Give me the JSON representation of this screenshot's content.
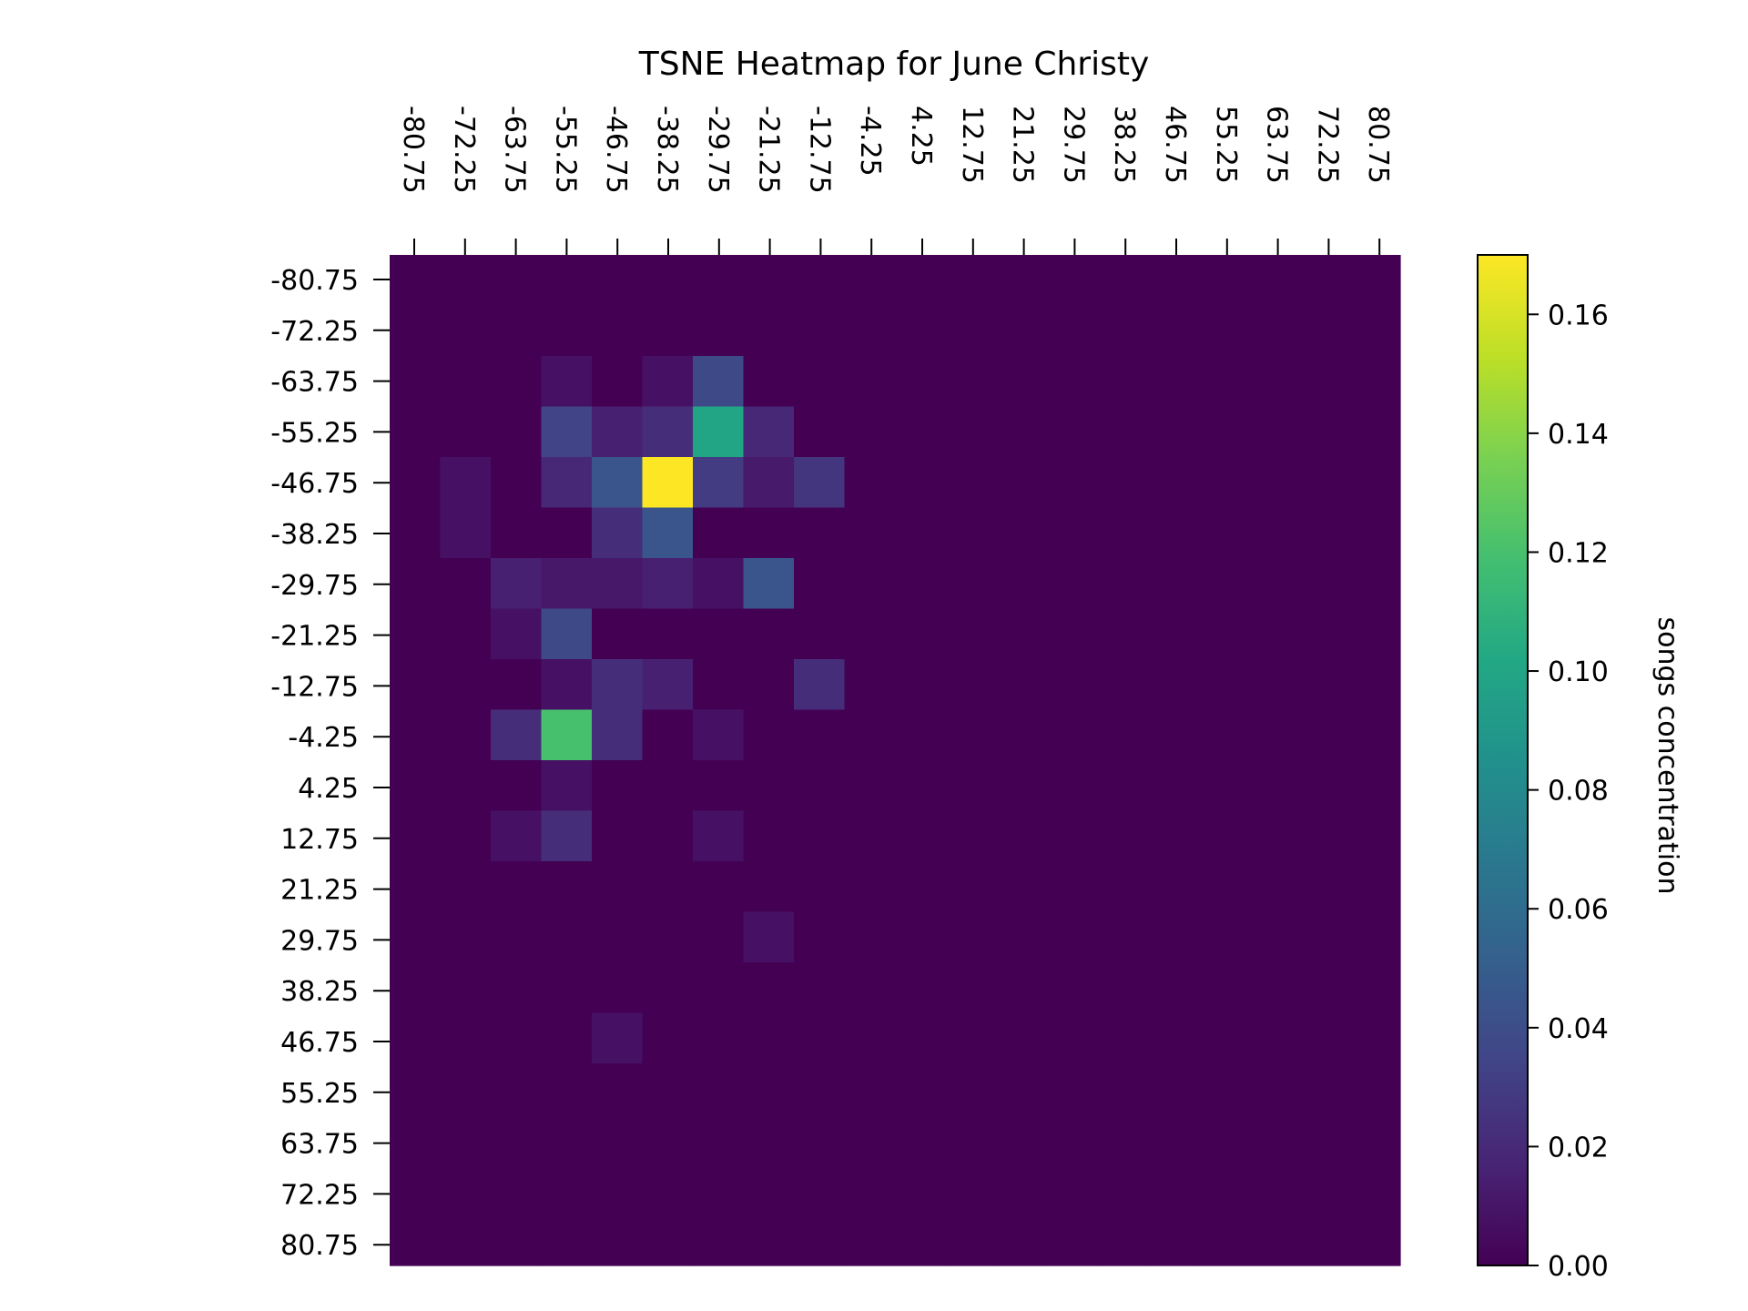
{
  "chart_data": {
    "type": "heatmap",
    "title": "TSNE Heatmap for June Christy",
    "x_ticks": [
      "-80.75",
      "-72.25",
      "-63.75",
      "-55.25",
      "-46.75",
      "-38.25",
      "-29.75",
      "-21.25",
      "-12.75",
      "-4.25",
      "4.25",
      "12.75",
      "21.25",
      "29.75",
      "38.25",
      "46.75",
      "55.25",
      "63.75",
      "72.25",
      "80.75"
    ],
    "y_ticks": [
      "-80.75",
      "-72.25",
      "-63.75",
      "-55.25",
      "-46.75",
      "-38.25",
      "-29.75",
      "-21.25",
      "-12.75",
      "-4.25",
      "4.25",
      "12.75",
      "21.25",
      "29.75",
      "38.25",
      "46.75",
      "55.25",
      "63.75",
      "72.25",
      "80.75"
    ],
    "x_axis_position": "top",
    "colormap": "viridis",
    "colorbar": {
      "label": "songs concentration",
      "range": [
        0,
        0.17
      ],
      "ticks": [
        "0.00",
        "0.02",
        "0.04",
        "0.06",
        "0.08",
        "0.10",
        "0.12",
        "0.14",
        "0.16"
      ],
      "tick_values": [
        0,
        0.02,
        0.04,
        0.06,
        0.08,
        0.1,
        0.12,
        0.14,
        0.16
      ]
    },
    "rows": 20,
    "cols": 20,
    "values": [
      [
        0,
        0,
        0,
        0,
        0,
        0,
        0,
        0,
        0,
        0,
        0,
        0,
        0,
        0,
        0,
        0,
        0,
        0,
        0,
        0
      ],
      [
        0,
        0,
        0,
        0,
        0,
        0,
        0,
        0,
        0,
        0,
        0,
        0,
        0,
        0,
        0,
        0,
        0,
        0,
        0,
        0
      ],
      [
        0,
        0,
        0,
        0.008,
        0,
        0.008,
        0.038,
        0,
        0,
        0,
        0,
        0,
        0,
        0,
        0,
        0,
        0,
        0,
        0,
        0
      ],
      [
        0,
        0,
        0,
        0.034,
        0.015,
        0.022,
        0.1,
        0.019,
        0,
        0,
        0,
        0,
        0,
        0,
        0,
        0,
        0,
        0,
        0,
        0
      ],
      [
        0,
        0.008,
        0,
        0.019,
        0.045,
        0.17,
        0.03,
        0.012,
        0.026,
        0,
        0,
        0,
        0,
        0,
        0,
        0,
        0,
        0,
        0,
        0
      ],
      [
        0,
        0.008,
        0,
        0,
        0.022,
        0.045,
        0,
        0,
        0,
        0,
        0,
        0,
        0,
        0,
        0,
        0,
        0,
        0,
        0,
        0
      ],
      [
        0,
        0,
        0.015,
        0.011,
        0.011,
        0.015,
        0.008,
        0.045,
        0,
        0,
        0,
        0,
        0,
        0,
        0,
        0,
        0,
        0,
        0,
        0
      ],
      [
        0,
        0,
        0.008,
        0.038,
        0,
        0,
        0,
        0,
        0,
        0,
        0,
        0,
        0,
        0,
        0,
        0,
        0,
        0,
        0,
        0
      ],
      [
        0,
        0,
        0,
        0.008,
        0.022,
        0.015,
        0,
        0,
        0.022,
        0,
        0,
        0,
        0,
        0,
        0,
        0,
        0,
        0,
        0,
        0
      ],
      [
        0,
        0,
        0.022,
        0.12,
        0.022,
        0,
        0.008,
        0,
        0,
        0,
        0,
        0,
        0,
        0,
        0,
        0,
        0,
        0,
        0,
        0
      ],
      [
        0,
        0,
        0,
        0.008,
        0,
        0,
        0,
        0,
        0,
        0,
        0,
        0,
        0,
        0,
        0,
        0,
        0,
        0,
        0,
        0
      ],
      [
        0,
        0,
        0.008,
        0.022,
        0,
        0,
        0.008,
        0,
        0,
        0,
        0,
        0,
        0,
        0,
        0,
        0,
        0,
        0,
        0,
        0
      ],
      [
        0,
        0,
        0,
        0,
        0,
        0,
        0,
        0,
        0,
        0,
        0,
        0,
        0,
        0,
        0,
        0,
        0,
        0,
        0,
        0
      ],
      [
        0,
        0,
        0,
        0,
        0,
        0,
        0,
        0.008,
        0,
        0,
        0,
        0,
        0,
        0,
        0,
        0,
        0,
        0,
        0,
        0
      ],
      [
        0,
        0,
        0,
        0,
        0,
        0,
        0,
        0,
        0,
        0,
        0,
        0,
        0,
        0,
        0,
        0,
        0,
        0,
        0,
        0
      ],
      [
        0,
        0,
        0,
        0,
        0.008,
        0,
        0,
        0,
        0,
        0,
        0,
        0,
        0,
        0,
        0,
        0,
        0,
        0,
        0,
        0
      ],
      [
        0,
        0,
        0,
        0,
        0,
        0,
        0,
        0,
        0,
        0,
        0,
        0,
        0,
        0,
        0,
        0,
        0,
        0,
        0,
        0
      ],
      [
        0,
        0,
        0,
        0,
        0,
        0,
        0,
        0,
        0,
        0,
        0,
        0,
        0,
        0,
        0,
        0,
        0,
        0,
        0,
        0
      ],
      [
        0,
        0,
        0,
        0,
        0,
        0,
        0,
        0,
        0,
        0,
        0,
        0,
        0,
        0,
        0,
        0,
        0,
        0,
        0,
        0
      ],
      [
        0,
        0,
        0,
        0,
        0,
        0,
        0,
        0,
        0,
        0,
        0,
        0,
        0,
        0,
        0,
        0,
        0,
        0,
        0,
        0
      ]
    ]
  }
}
